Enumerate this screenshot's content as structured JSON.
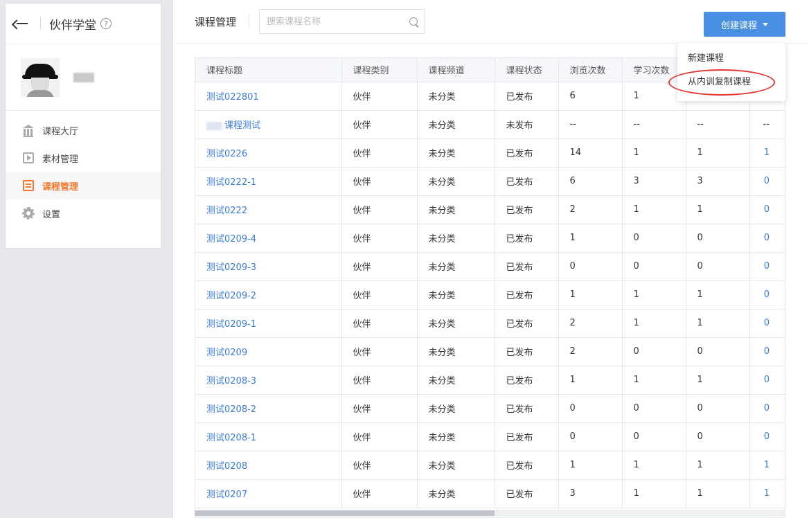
{
  "sidebar": {
    "title": "伙伴学堂",
    "help_glyph": "?",
    "menu": [
      {
        "label": "课程大厅",
        "icon": "bank-icon",
        "active": false
      },
      {
        "label": "素材管理",
        "icon": "media-icon",
        "active": false
      },
      {
        "label": "课程管理",
        "icon": "course-icon",
        "active": true
      },
      {
        "label": "设置",
        "icon": "gear-icon",
        "active": false
      }
    ]
  },
  "header": {
    "title": "课程管理",
    "search_placeholder": "搜索课程名称",
    "create_label": "创建课程"
  },
  "dropdown": {
    "items": [
      "新建课程",
      "从内训复制课程"
    ]
  },
  "table": {
    "columns": [
      "课程标题",
      "课程类别",
      "课程频道",
      "课程状态",
      "浏览次数",
      "学习次数",
      "",
      ""
    ],
    "rows": [
      [
        "测试022801",
        "伙伴",
        "未分类",
        "已发布",
        "6",
        "1",
        "",
        ""
      ],
      [
        "课程测试",
        "伙伴",
        "未分类",
        "未发布",
        "--",
        "--",
        "--",
        "--"
      ],
      [
        "测试0226",
        "伙伴",
        "未分类",
        "已发布",
        "14",
        "1",
        "1",
        "1"
      ],
      [
        "测试0222-1",
        "伙伴",
        "未分类",
        "已发布",
        "6",
        "3",
        "3",
        "0"
      ],
      [
        "测试0222",
        "伙伴",
        "未分类",
        "已发布",
        "2",
        "1",
        "1",
        "0"
      ],
      [
        "测试0209-4",
        "伙伴",
        "未分类",
        "已发布",
        "1",
        "0",
        "0",
        "0"
      ],
      [
        "测试0209-3",
        "伙伴",
        "未分类",
        "已发布",
        "0",
        "0",
        "0",
        "0"
      ],
      [
        "测试0209-2",
        "伙伴",
        "未分类",
        "已发布",
        "1",
        "1",
        "1",
        "0"
      ],
      [
        "测试0209-1",
        "伙伴",
        "未分类",
        "已发布",
        "2",
        "1",
        "1",
        "0"
      ],
      [
        "测试0209",
        "伙伴",
        "未分类",
        "已发布",
        "2",
        "0",
        "0",
        "0"
      ],
      [
        "测试0208-3",
        "伙伴",
        "未分类",
        "已发布",
        "1",
        "1",
        "1",
        "0"
      ],
      [
        "测试0208-2",
        "伙伴",
        "未分类",
        "已发布",
        "0",
        "0",
        "0",
        "0"
      ],
      [
        "测试0208-1",
        "伙伴",
        "未分类",
        "已发布",
        "0",
        "0",
        "0",
        "0"
      ],
      [
        "测试0208",
        "伙伴",
        "未分类",
        "已发布",
        "1",
        "1",
        "1",
        "1"
      ],
      [
        "测试0207",
        "伙伴",
        "未分类",
        "已发布",
        "3",
        "1",
        "1",
        "1"
      ]
    ]
  },
  "colors": {
    "accent_orange": "#f5772d",
    "link_blue": "#3a7bd5",
    "button_blue": "#4a90e2",
    "annotation_red": "#e5342f"
  }
}
